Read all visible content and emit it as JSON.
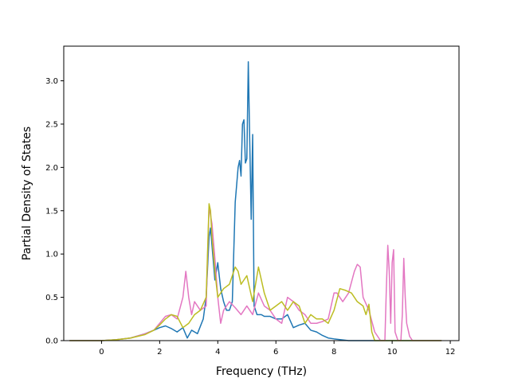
{
  "chart_data": {
    "type": "line",
    "title": "",
    "xlabel": "Frequency (THz)",
    "ylabel": "Partial Density of States",
    "xlim": [
      -1.3,
      12.3
    ],
    "ylim": [
      0,
      3.4
    ],
    "xticks": [
      0,
      2,
      4,
      6,
      8,
      10,
      12
    ],
    "yticks": [
      0.0,
      0.5,
      1.0,
      1.5,
      2.0,
      2.5,
      3.0
    ],
    "xtick_labels": [
      "0",
      "2",
      "4",
      "6",
      "8",
      "10",
      "12"
    ],
    "ytick_labels": [
      "0.0",
      "0.5",
      "1.0",
      "1.5",
      "2.0",
      "2.5",
      "3.0"
    ],
    "grid": false,
    "legend": "none",
    "series": [
      {
        "color": "#1f77b4",
        "x": [
          -1.1,
          0,
          0.5,
          1,
          1.5,
          1.8,
          2,
          2.2,
          2.4,
          2.6,
          2.8,
          2.95,
          3.1,
          3.3,
          3.5,
          3.6,
          3.7,
          3.75,
          3.8,
          3.9,
          4,
          4.1,
          4.2,
          4.3,
          4.4,
          4.5,
          4.6,
          4.7,
          4.75,
          4.8,
          4.85,
          4.9,
          4.95,
          5,
          5.05,
          5.1,
          5.15,
          5.2,
          5.25,
          5.3,
          5.35,
          5.4,
          5.5,
          5.6,
          5.8,
          6,
          6.2,
          6.4,
          6.6,
          6.8,
          7,
          7.2,
          7.4,
          7.6,
          7.8,
          8,
          8.5,
          9,
          9.5,
          10,
          10.5,
          11,
          11.7
        ],
        "y": [
          0,
          0,
          0.01,
          0.03,
          0.08,
          0.12,
          0.15,
          0.17,
          0.14,
          0.1,
          0.15,
          0.03,
          0.12,
          0.08,
          0.25,
          0.5,
          1.2,
          1.3,
          1.1,
          0.7,
          0.9,
          0.6,
          0.45,
          0.35,
          0.35,
          0.45,
          1.6,
          2.0,
          2.08,
          1.9,
          2.5,
          2.55,
          2.05,
          2.1,
          3.22,
          2.3,
          1.4,
          2.38,
          0.4,
          0.35,
          0.3,
          0.3,
          0.3,
          0.28,
          0.28,
          0.25,
          0.25,
          0.3,
          0.15,
          0.18,
          0.2,
          0.12,
          0.1,
          0.06,
          0.03,
          0.02,
          0,
          0,
          0,
          0,
          0,
          0,
          0
        ]
      },
      {
        "color": "#e377c2",
        "x": [
          -1.1,
          0,
          0.5,
          1,
          1.5,
          1.8,
          2,
          2.2,
          2.4,
          2.6,
          2.8,
          2.9,
          3,
          3.1,
          3.2,
          3.4,
          3.6,
          3.7,
          3.8,
          3.9,
          4,
          4.1,
          4.2,
          4.4,
          4.6,
          4.8,
          5,
          5.2,
          5.4,
          5.6,
          5.8,
          6,
          6.2,
          6.4,
          6.6,
          6.8,
          7,
          7.2,
          7.4,
          7.6,
          7.8,
          8,
          8.1,
          8.3,
          8.5,
          8.7,
          8.8,
          8.9,
          9,
          9.2,
          9.4,
          9.6,
          9.75,
          9.8,
          9.85,
          9.9,
          9.95,
          10,
          10.05,
          10.1,
          10.2,
          10.3,
          10.35,
          10.4,
          10.45,
          10.5,
          10.6,
          10.7,
          11,
          11.7
        ],
        "y": [
          0,
          0,
          0.01,
          0.03,
          0.08,
          0.12,
          0.2,
          0.28,
          0.3,
          0.25,
          0.5,
          0.8,
          0.5,
          0.3,
          0.45,
          0.35,
          0.4,
          1.55,
          1.35,
          0.95,
          0.5,
          0.2,
          0.35,
          0.45,
          0.38,
          0.3,
          0.4,
          0.3,
          0.55,
          0.4,
          0.35,
          0.25,
          0.2,
          0.5,
          0.45,
          0.35,
          0.3,
          0.2,
          0.2,
          0.22,
          0.25,
          0.55,
          0.55,
          0.45,
          0.55,
          0.8,
          0.88,
          0.85,
          0.5,
          0.35,
          0.1,
          0,
          0,
          0.6,
          1.1,
          0.8,
          0.2,
          0.9,
          1.05,
          0.1,
          0,
          0,
          0.3,
          0.95,
          0.5,
          0.2,
          0.05,
          0,
          0,
          0
        ]
      },
      {
        "color": "#bcbd22",
        "x": [
          -1.1,
          0,
          0.5,
          1,
          1.5,
          1.8,
          2,
          2.2,
          2.4,
          2.6,
          2.8,
          3,
          3.2,
          3.4,
          3.6,
          3.7,
          3.75,
          3.8,
          3.9,
          4,
          4.2,
          4.4,
          4.6,
          4.7,
          4.8,
          5,
          5.2,
          5.4,
          5.5,
          5.6,
          5.8,
          6,
          6.2,
          6.4,
          6.6,
          6.8,
          7,
          7.2,
          7.4,
          7.6,
          7.8,
          8,
          8.2,
          8.4,
          8.6,
          8.8,
          9,
          9.1,
          9.2,
          9.3,
          9.4,
          9.6,
          10,
          11,
          11.7
        ],
        "y": [
          0,
          0,
          0.01,
          0.03,
          0.07,
          0.12,
          0.18,
          0.25,
          0.3,
          0.28,
          0.15,
          0.2,
          0.3,
          0.35,
          0.5,
          1.58,
          1.5,
          1.2,
          0.8,
          0.5,
          0.6,
          0.65,
          0.85,
          0.8,
          0.65,
          0.75,
          0.45,
          0.85,
          0.7,
          0.55,
          0.35,
          0.4,
          0.45,
          0.35,
          0.45,
          0.4,
          0.2,
          0.3,
          0.25,
          0.25,
          0.2,
          0.35,
          0.6,
          0.58,
          0.55,
          0.45,
          0.4,
          0.3,
          0.42,
          0.1,
          0,
          0,
          0,
          0,
          0
        ]
      }
    ]
  }
}
